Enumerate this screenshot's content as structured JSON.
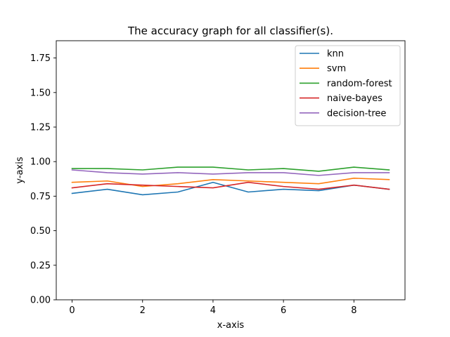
{
  "chart_data": {
    "type": "line",
    "title": "The accuracy graph for all classifier(s).",
    "xlabel": "x-axis",
    "ylabel": "y-axis",
    "xlim": [
      -0.45,
      9.45
    ],
    "ylim": [
      0.0,
      1.875
    ],
    "xticks": [
      0,
      2,
      4,
      6,
      8
    ],
    "xtick_labels": [
      "0",
      "2",
      "4",
      "6",
      "8"
    ],
    "yticks": [
      0.0,
      0.25,
      0.5,
      0.75,
      1.0,
      1.25,
      1.5,
      1.75
    ],
    "ytick_labels": [
      "0.00",
      "0.25",
      "0.50",
      "0.75",
      "1.00",
      "1.25",
      "1.50",
      "1.75"
    ],
    "grid": false,
    "legend_position": "top-right",
    "x": [
      0,
      1,
      2,
      3,
      4,
      5,
      6,
      7,
      8,
      9
    ],
    "series": [
      {
        "name": "knn",
        "color": "#1f77b4",
        "values": [
          0.77,
          0.8,
          0.76,
          0.78,
          0.85,
          0.78,
          0.8,
          0.79,
          0.83,
          0.8
        ]
      },
      {
        "name": "svm",
        "color": "#ff7f0e",
        "values": [
          0.85,
          0.86,
          0.82,
          0.84,
          0.87,
          0.86,
          0.85,
          0.84,
          0.88,
          0.87
        ]
      },
      {
        "name": "random-forest",
        "color": "#2ca02c",
        "values": [
          0.95,
          0.95,
          0.94,
          0.96,
          0.96,
          0.94,
          0.95,
          0.93,
          0.96,
          0.94
        ]
      },
      {
        "name": "naive-bayes",
        "color": "#d62728",
        "values": [
          0.81,
          0.84,
          0.83,
          0.82,
          0.81,
          0.85,
          0.82,
          0.8,
          0.83,
          0.8
        ]
      },
      {
        "name": "decision-tree",
        "color": "#9467bd",
        "values": [
          0.94,
          0.92,
          0.91,
          0.92,
          0.91,
          0.92,
          0.92,
          0.9,
          0.92,
          0.92
        ]
      }
    ]
  }
}
